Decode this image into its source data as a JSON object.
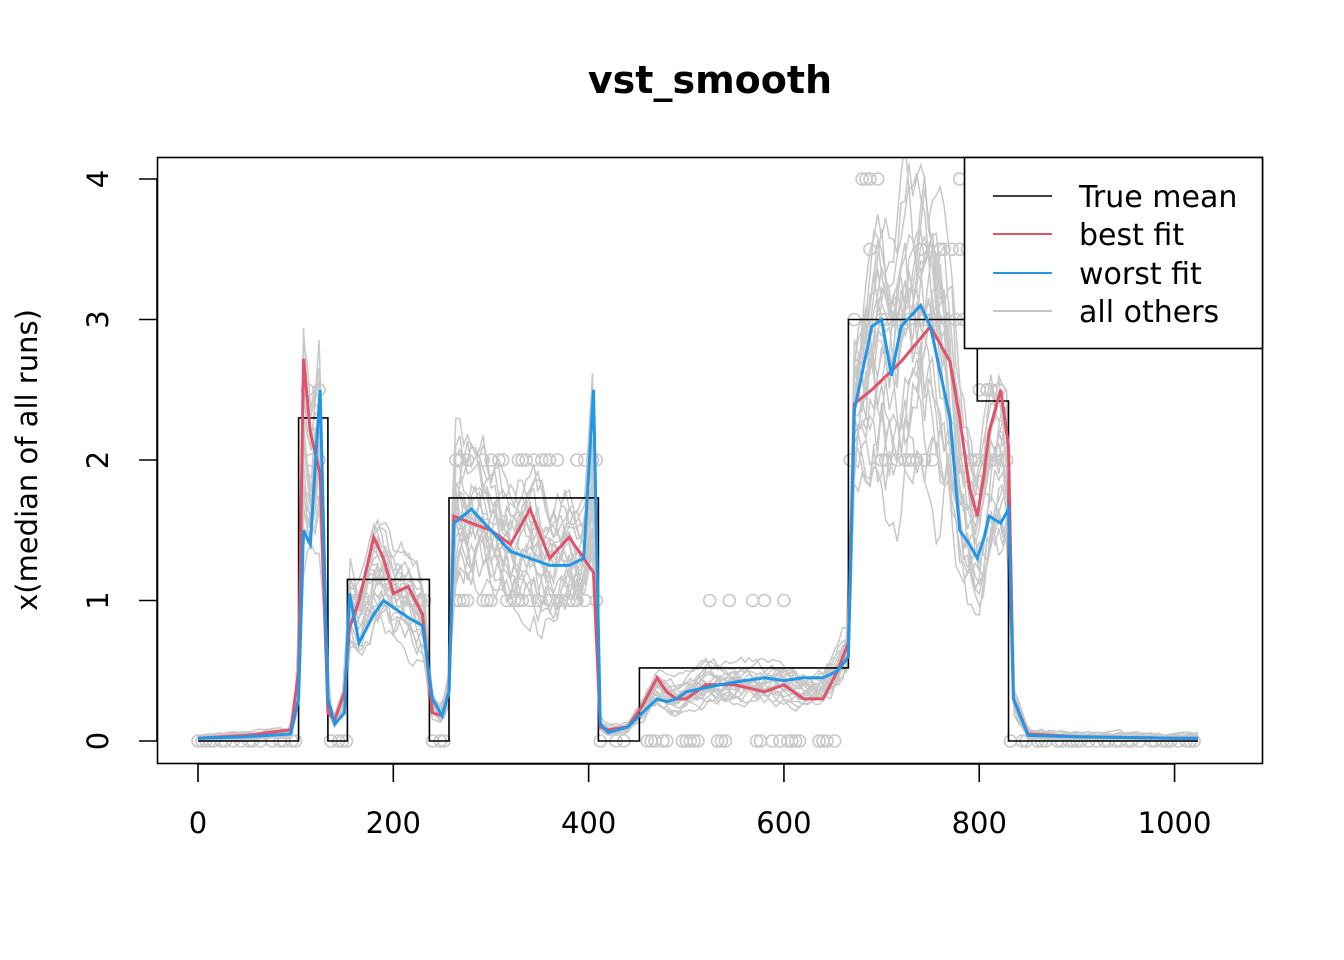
{
  "chart_data": {
    "type": "line",
    "title": "vst_smooth",
    "xlabel": "",
    "ylabel": "x(median of all runs)",
    "xlim": [
      0,
      1024
    ],
    "ylim": [
      0,
      4
    ],
    "xticks": [
      0,
      200,
      400,
      600,
      800,
      1000
    ],
    "yticks": [
      0,
      1,
      2,
      3,
      4
    ],
    "legend_position": "top-right",
    "legend": [
      {
        "label": "True mean",
        "color": "#000000"
      },
      {
        "label": "best fit",
        "color": "#df536b"
      },
      {
        "label": "worst fit",
        "color": "#2297e6"
      },
      {
        "label": "all others",
        "color": "#c8c8c8"
      }
    ],
    "true_mean": {
      "x": [
        0,
        103,
        103,
        133,
        133,
        153,
        153,
        237,
        237,
        257,
        257,
        410,
        410,
        452,
        452,
        666,
        666,
        798,
        798,
        830,
        830,
        1024
      ],
      "y": [
        0,
        0,
        2.3,
        2.3,
        0,
        0,
        1.15,
        1.15,
        0,
        0,
        1.73,
        1.73,
        0,
        0,
        0.52,
        0.52,
        3.0,
        3.0,
        2.42,
        2.42,
        0,
        0
      ]
    },
    "best_fit": {
      "x": [
        0,
        50,
        95,
        103,
        108,
        115,
        125,
        133,
        140,
        150,
        155,
        165,
        180,
        190,
        200,
        215,
        230,
        240,
        250,
        257,
        262,
        280,
        300,
        320,
        340,
        360,
        380,
        395,
        405,
        412,
        420,
        440,
        455,
        470,
        480,
        490,
        500,
        520,
        550,
        580,
        600,
        620,
        640,
        655,
        666,
        672,
        690,
        720,
        750,
        770,
        780,
        790,
        798,
        805,
        810,
        822,
        830,
        835,
        850,
        900,
        1000,
        1024
      ],
      "y": [
        0.02,
        0.04,
        0.08,
        0.5,
        2.72,
        2.2,
        1.9,
        0.2,
        0.15,
        0.35,
        0.8,
        1.0,
        1.45,
        1.3,
        1.05,
        1.1,
        0.9,
        0.2,
        0.18,
        0.35,
        1.6,
        1.55,
        1.5,
        1.4,
        1.65,
        1.3,
        1.45,
        1.3,
        1.2,
        0.1,
        0.08,
        0.1,
        0.25,
        0.45,
        0.35,
        0.3,
        0.3,
        0.4,
        0.4,
        0.35,
        0.4,
        0.3,
        0.3,
        0.5,
        0.7,
        2.4,
        2.5,
        2.7,
        2.95,
        2.7,
        2.3,
        1.8,
        1.6,
        1.9,
        2.2,
        2.5,
        2.1,
        0.3,
        0.05,
        0.03,
        0.02,
        0.02
      ]
    },
    "worst_fit": {
      "x": [
        0,
        50,
        95,
        103,
        108,
        115,
        125,
        133,
        140,
        150,
        155,
        165,
        180,
        190,
        200,
        215,
        230,
        240,
        250,
        257,
        262,
        280,
        300,
        320,
        340,
        360,
        380,
        395,
        405,
        412,
        420,
        440,
        455,
        470,
        480,
        490,
        500,
        520,
        550,
        580,
        600,
        620,
        640,
        655,
        666,
        672,
        690,
        700,
        710,
        720,
        740,
        750,
        770,
        780,
        790,
        798,
        805,
        810,
        822,
        830,
        835,
        850,
        900,
        1000,
        1024
      ],
      "y": [
        0.02,
        0.03,
        0.05,
        0.3,
        1.5,
        1.4,
        2.5,
        0.3,
        0.12,
        0.2,
        1.05,
        0.7,
        0.9,
        1.0,
        0.95,
        0.88,
        0.82,
        0.3,
        0.18,
        0.35,
        1.55,
        1.65,
        1.5,
        1.35,
        1.3,
        1.25,
        1.25,
        1.3,
        2.5,
        0.12,
        0.06,
        0.1,
        0.2,
        0.3,
        0.28,
        0.3,
        0.35,
        0.38,
        0.42,
        0.45,
        0.43,
        0.45,
        0.45,
        0.5,
        0.6,
        2.35,
        2.95,
        3.0,
        2.6,
        2.95,
        3.1,
        2.95,
        2.3,
        1.5,
        1.4,
        1.3,
        1.45,
        1.6,
        1.55,
        1.65,
        0.3,
        0.04,
        0.03,
        0.02,
        0.02
      ]
    }
  }
}
